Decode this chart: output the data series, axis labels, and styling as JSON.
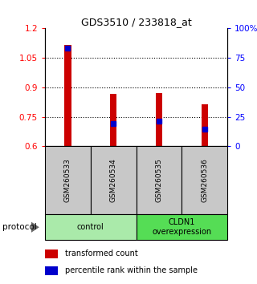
{
  "title": "GDS3510 / 233818_at",
  "samples": [
    "GSM260533",
    "GSM260534",
    "GSM260535",
    "GSM260536"
  ],
  "bar_tops": [
    1.115,
    0.865,
    0.872,
    0.815
  ],
  "bar_bottom": 0.6,
  "percentile_values": [
    0.83,
    0.195,
    0.21,
    0.148
  ],
  "ylim_left": [
    0.6,
    1.2
  ],
  "ylim_right": [
    0,
    100
  ],
  "yticks_left": [
    0.6,
    0.75,
    0.9,
    1.05,
    1.2
  ],
  "ytick_labels_left": [
    "0.6",
    "0.75",
    "0.9",
    "1.05",
    "1.2"
  ],
  "yticks_right": [
    0,
    25,
    50,
    75,
    100
  ],
  "ytick_labels_right": [
    "0",
    "25",
    "50",
    "75",
    "100%"
  ],
  "dotted_lines": [
    0.75,
    0.9,
    1.05
  ],
  "groups": [
    {
      "label": "control",
      "samples": [
        0,
        1
      ],
      "color": "#AAEAAA"
    },
    {
      "label": "CLDN1\noverexpression",
      "samples": [
        2,
        3
      ],
      "color": "#55DD55"
    }
  ],
  "bar_color": "#CC0000",
  "percentile_color": "#0000CC",
  "bar_width": 0.15,
  "sample_box_color": "#C8C8C8",
  "legend_bar_label": "transformed count",
  "legend_pct_label": "percentile rank within the sample",
  "protocol_label": "protocol"
}
